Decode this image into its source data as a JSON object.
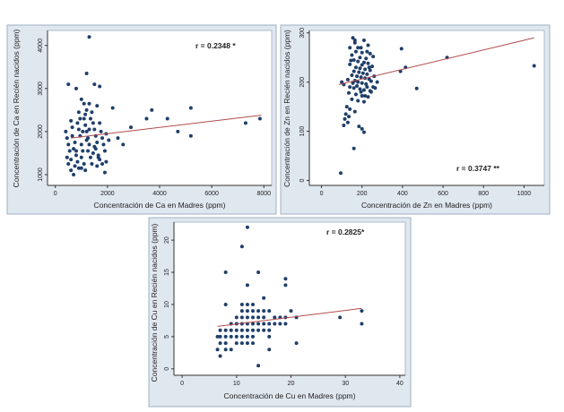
{
  "chart_data": [
    {
      "id": "ca",
      "type": "scatter",
      "xlabel": "Concentración de Ca en Madres (ppm)",
      "ylabel": "Concentración de Ca en Recién nacidos (ppm)",
      "annotation": "r = 0.2348 *",
      "xlim": [
        -300,
        8300
      ],
      "ylim": [
        750,
        4350
      ],
      "xticks": [
        0,
        2000,
        4000,
        6000,
        8000
      ],
      "yticks": [
        1000,
        2000,
        3000,
        4000
      ],
      "xtick_labels": [
        "0",
        "2000",
        "4000",
        "6000",
        "8000"
      ],
      "ytick_labels": [
        "1000",
        "2000",
        "3000",
        "4000"
      ],
      "fit_line": {
        "x": [
          600,
          7900
        ],
        "y": [
          1850,
          2380
        ]
      },
      "points": [
        [
          1300,
          4200
        ],
        [
          1200,
          3350
        ],
        [
          500,
          3100
        ],
        [
          1500,
          3100
        ],
        [
          800,
          3000
        ],
        [
          1700,
          3050
        ],
        [
          1000,
          2750
        ],
        [
          1100,
          2650
        ],
        [
          1300,
          2650
        ],
        [
          2200,
          2550
        ],
        [
          1600,
          2600
        ],
        [
          3700,
          2500
        ],
        [
          5200,
          2550
        ],
        [
          7850,
          2300
        ],
        [
          7300,
          2200
        ],
        [
          4300,
          2300
        ],
        [
          3500,
          2300
        ],
        [
          2900,
          2100
        ],
        [
          4700,
          2000
        ],
        [
          5200,
          1900
        ],
        [
          2400,
          1850
        ],
        [
          2600,
          1700
        ],
        [
          1950,
          1300
        ],
        [
          1800,
          1250
        ],
        [
          1900,
          1050
        ],
        [
          1650,
          1400
        ],
        [
          400,
          2000
        ],
        [
          450,
          1850
        ],
        [
          500,
          1700
        ],
        [
          550,
          1550
        ],
        [
          450,
          1400
        ],
        [
          500,
          1250
        ],
        [
          600,
          1100
        ],
        [
          700,
          1000
        ],
        [
          650,
          1900
        ],
        [
          750,
          1750
        ],
        [
          700,
          1600
        ],
        [
          800,
          1450
        ],
        [
          850,
          1300
        ],
        [
          900,
          1150
        ],
        [
          900,
          2050
        ],
        [
          950,
          1900
        ],
        [
          1000,
          1700
        ],
        [
          1050,
          1550
        ],
        [
          1000,
          1400
        ],
        [
          1100,
          1250
        ],
        [
          1150,
          1100
        ],
        [
          1100,
          2300
        ],
        [
          1150,
          2150
        ],
        [
          1200,
          2000
        ],
        [
          1250,
          1850
        ],
        [
          1300,
          1700
        ],
        [
          1250,
          1550
        ],
        [
          1350,
          1400
        ],
        [
          1400,
          1250
        ],
        [
          1400,
          2450
        ],
        [
          1450,
          2200
        ],
        [
          1500,
          2050
        ],
        [
          1550,
          1900
        ],
        [
          1600,
          1750
        ],
        [
          1550,
          1600
        ],
        [
          1650,
          1450
        ],
        [
          1700,
          2200
        ],
        [
          1750,
          2000
        ],
        [
          1800,
          1850
        ],
        [
          1850,
          1700
        ],
        [
          1900,
          1550
        ],
        [
          1950,
          1950
        ],
        [
          2050,
          1800
        ],
        [
          600,
          2250
        ],
        [
          650,
          2100
        ],
        [
          900,
          2450
        ],
        [
          950,
          2300
        ],
        [
          1200,
          2500
        ],
        [
          1350,
          2300
        ],
        [
          1450,
          1500
        ],
        [
          1600,
          1200
        ],
        [
          750,
          1200
        ],
        [
          600,
          1350
        ],
        [
          850,
          2200
        ],
        [
          1050,
          2000
        ],
        [
          1200,
          1800
        ],
        [
          1300,
          2050
        ],
        [
          1500,
          1650
        ],
        [
          1700,
          1350
        ],
        [
          800,
          1550
        ],
        [
          1000,
          1150
        ],
        [
          1150,
          2400
        ]
      ]
    },
    {
      "id": "zn",
      "type": "scatter",
      "xlabel": "Concentración de Zn en Madres (ppm)",
      "ylabel": "Concentración de Zn en Recién nacidos (ppm)",
      "annotation": "r = 0.3747 **",
      "xlim": [
        -60,
        1100
      ],
      "ylim": [
        -10,
        305
      ],
      "xticks": [
        0,
        200,
        400,
        600,
        800,
        1000
      ],
      "yticks": [
        0,
        100,
        200,
        300
      ],
      "xtick_labels": [
        "0",
        "200",
        "400",
        "600",
        "800",
        "1000"
      ],
      "ytick_labels": [
        "0",
        "100",
        "200",
        "300"
      ],
      "fit_line": {
        "x": [
          85,
          1050
        ],
        "y": [
          195,
          290
        ]
      },
      "points": [
        [
          155,
          290
        ],
        [
          165,
          285
        ],
        [
          210,
          285
        ],
        [
          140,
          270
        ],
        [
          180,
          270
        ],
        [
          230,
          275
        ],
        [
          170,
          262
        ],
        [
          200,
          260
        ],
        [
          240,
          258
        ],
        [
          150,
          255
        ],
        [
          190,
          250
        ],
        [
          220,
          248
        ],
        [
          160,
          245
        ],
        [
          180,
          242
        ],
        [
          210,
          240
        ],
        [
          230,
          238
        ],
        [
          140,
          236
        ],
        [
          200,
          235
        ],
        [
          250,
          232
        ],
        [
          170,
          230
        ],
        [
          190,
          228
        ],
        [
          215,
          226
        ],
        [
          240,
          224
        ],
        [
          160,
          222
        ],
        [
          185,
          220
        ],
        [
          205,
          218
        ],
        [
          225,
          216
        ],
        [
          150,
          214
        ],
        [
          175,
          212
        ],
        [
          195,
          210
        ],
        [
          215,
          208
        ],
        [
          235,
          206
        ],
        [
          130,
          205
        ],
        [
          165,
          203
        ],
        [
          180,
          200
        ],
        [
          200,
          198
        ],
        [
          220,
          196
        ],
        [
          100,
          200
        ],
        [
          110,
          195
        ],
        [
          140,
          190
        ],
        [
          160,
          188
        ],
        [
          190,
          186
        ],
        [
          210,
          184
        ],
        [
          240,
          182
        ],
        [
          135,
          178
        ],
        [
          170,
          175
        ],
        [
          200,
          172
        ],
        [
          230,
          170
        ],
        [
          150,
          165
        ],
        [
          180,
          162
        ],
        [
          210,
          160
        ],
        [
          125,
          150
        ],
        [
          140,
          145
        ],
        [
          165,
          140
        ],
        [
          120,
          135
        ],
        [
          135,
          130
        ],
        [
          115,
          125
        ],
        [
          130,
          118
        ],
        [
          110,
          112
        ],
        [
          185,
          110
        ],
        [
          200,
          105
        ],
        [
          210,
          98
        ],
        [
          160,
          65
        ],
        [
          95,
          15
        ],
        [
          395,
          268
        ],
        [
          415,
          230
        ],
        [
          390,
          222
        ],
        [
          470,
          187
        ],
        [
          620,
          250
        ],
        [
          1050,
          233
        ],
        [
          260,
          212
        ],
        [
          275,
          200
        ],
        [
          255,
          190
        ],
        [
          245,
          180
        ],
        [
          165,
          280
        ],
        [
          195,
          270
        ],
        [
          225,
          262
        ],
        [
          255,
          252
        ],
        [
          145,
          244
        ],
        [
          235,
          230
        ],
        [
          155,
          198
        ],
        [
          245,
          202
        ],
        [
          175,
          192
        ],
        [
          225,
          190
        ],
        [
          195,
          180
        ],
        [
          215,
          172
        ],
        [
          265,
          188
        ]
      ]
    },
    {
      "id": "cu",
      "type": "scatter",
      "xlabel": "Concentración de Cu en Madres (ppm)",
      "ylabel": "Concentración de Cu en Recién nacidos (ppm)",
      "annotation": "r = 0.2825*",
      "xlim": [
        -1.5,
        41
      ],
      "ylim": [
        -1,
        22.8
      ],
      "xticks": [
        0,
        10,
        20,
        30,
        40
      ],
      "yticks": [
        0,
        5,
        10,
        15,
        20
      ],
      "xtick_labels": [
        "0",
        "10",
        "20",
        "30",
        "40"
      ],
      "ytick_labels": [
        "0",
        "5",
        "10",
        "15",
        "20"
      ],
      "fit_line": {
        "x": [
          6.5,
          33
        ],
        "y": [
          6.6,
          9.4
        ]
      },
      "points": [
        [
          12,
          22
        ],
        [
          11,
          19
        ],
        [
          8,
          15
        ],
        [
          14,
          15
        ],
        [
          19,
          14
        ],
        [
          19,
          13
        ],
        [
          12,
          13
        ],
        [
          15,
          11
        ],
        [
          11,
          10
        ],
        [
          13,
          10
        ],
        [
          8,
          10
        ],
        [
          12,
          9
        ],
        [
          14,
          9
        ],
        [
          16,
          9
        ],
        [
          20,
          9
        ],
        [
          33,
          9
        ],
        [
          12,
          8
        ],
        [
          13,
          8
        ],
        [
          15,
          8
        ],
        [
          17,
          8
        ],
        [
          18,
          8
        ],
        [
          19,
          8
        ],
        [
          21,
          8
        ],
        [
          29,
          8
        ],
        [
          11,
          7
        ],
        [
          12,
          7
        ],
        [
          13,
          7
        ],
        [
          14,
          7
        ],
        [
          15,
          7
        ],
        [
          16,
          7
        ],
        [
          19,
          7
        ],
        [
          33,
          7
        ],
        [
          7,
          6
        ],
        [
          8,
          6
        ],
        [
          10,
          6
        ],
        [
          11,
          6
        ],
        [
          12,
          6
        ],
        [
          13,
          6
        ],
        [
          15,
          6
        ],
        [
          6.5,
          5
        ],
        [
          7,
          5
        ],
        [
          8,
          5
        ],
        [
          9,
          5
        ],
        [
          10,
          5
        ],
        [
          11,
          5
        ],
        [
          12,
          5
        ],
        [
          7,
          4
        ],
        [
          8,
          4
        ],
        [
          10,
          4
        ],
        [
          11,
          4
        ],
        [
          13,
          4
        ],
        [
          21,
          4
        ],
        [
          6.5,
          3
        ],
        [
          8,
          3
        ],
        [
          9,
          3
        ],
        [
          16,
          3
        ],
        [
          7,
          2
        ],
        [
          14,
          0.5
        ],
        [
          9,
          7
        ],
        [
          10,
          7
        ],
        [
          17,
          7
        ],
        [
          9,
          6
        ],
        [
          14,
          6
        ],
        [
          16,
          6
        ],
        [
          10,
          8
        ],
        [
          11,
          8
        ],
        [
          14,
          8
        ],
        [
          12,
          4
        ],
        [
          13,
          5
        ],
        [
          16,
          5
        ],
        [
          11,
          9
        ],
        [
          13,
          9
        ],
        [
          12,
          10
        ],
        [
          15,
          9
        ],
        [
          18,
          7
        ]
      ]
    }
  ]
}
